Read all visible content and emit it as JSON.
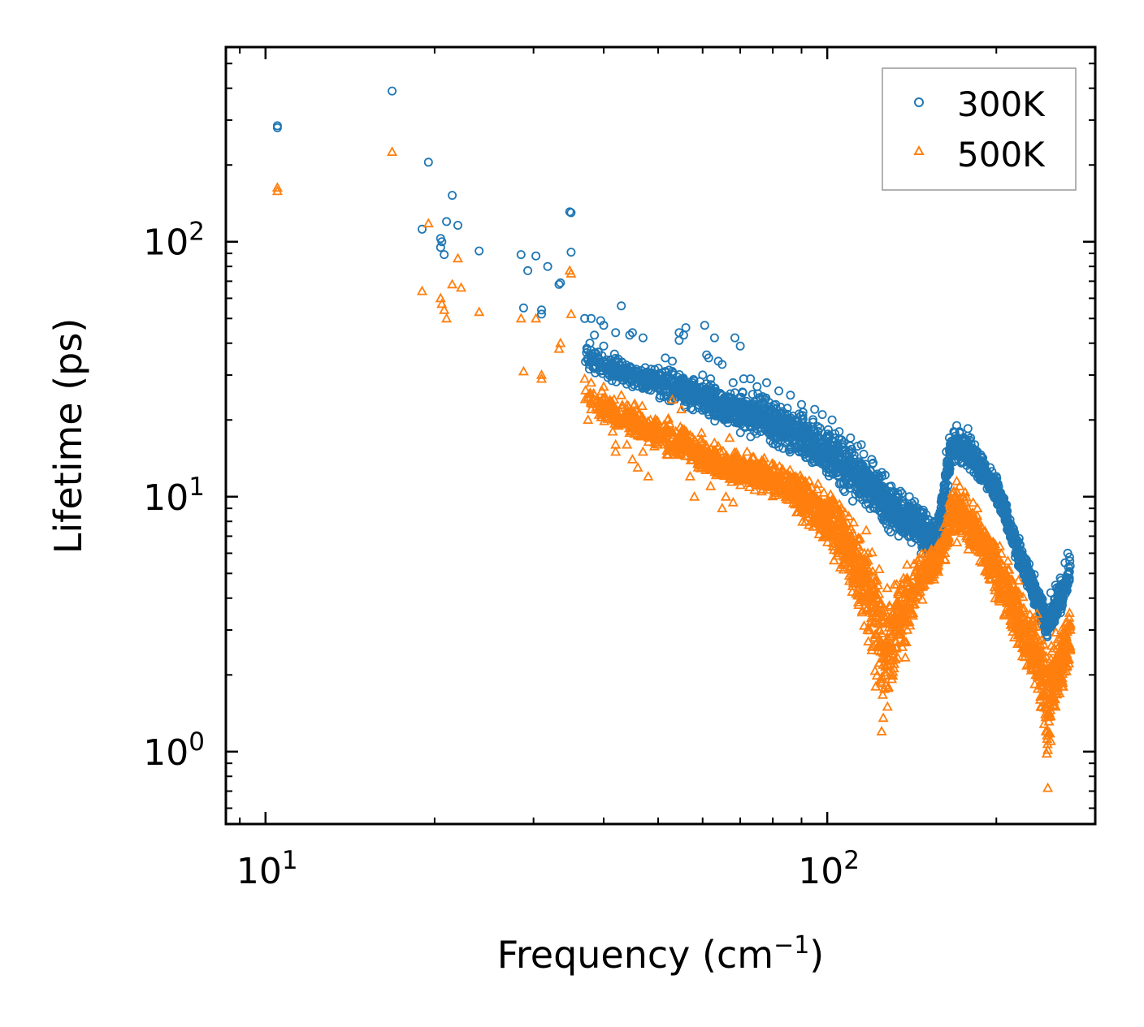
{
  "chart_data": {
    "type": "scatter",
    "title": "",
    "xlabel": "Frequency (cm",
    "xlabel_sup": "−1",
    "xlabel_suffix": ")",
    "ylabel": "Lifetime (ps)",
    "xscale": "log",
    "yscale": "log",
    "xlim": [
      8.5,
      300
    ],
    "ylim": [
      0.52,
      580
    ],
    "grid": false,
    "legend_position": "top-right",
    "x_ticks": [
      {
        "value": 10,
        "base": "10",
        "exp": "1"
      },
      {
        "value": 100,
        "base": "10",
        "exp": "2"
      }
    ],
    "y_ticks": [
      {
        "value": 1,
        "base": "10",
        "exp": "0"
      },
      {
        "value": 10,
        "base": "10",
        "exp": "1"
      },
      {
        "value": 100,
        "base": "10",
        "exp": "2"
      }
    ],
    "series": [
      {
        "name": "300K",
        "marker": "circle",
        "color": "#1f77b4",
        "points": [
          [
            10.5,
            285
          ],
          [
            10.5,
            280
          ],
          [
            16.8,
            390
          ],
          [
            19.5,
            205
          ],
          [
            21.5,
            152
          ],
          [
            21,
            120
          ],
          [
            22,
            116
          ],
          [
            19,
            112
          ],
          [
            20.5,
            103
          ],
          [
            20.6,
            100
          ],
          [
            20.5,
            95
          ],
          [
            20.8,
            89
          ],
          [
            24,
            92
          ],
          [
            28.5,
            89
          ],
          [
            30.3,
            88
          ],
          [
            31.8,
            80
          ],
          [
            29.3,
            77
          ],
          [
            35,
            130
          ],
          [
            34.8,
            131
          ],
          [
            35,
            91
          ],
          [
            33.5,
            69
          ],
          [
            33.3,
            68
          ],
          [
            28.8,
            55
          ],
          [
            31,
            54
          ],
          [
            31,
            52
          ],
          [
            37,
            50
          ],
          [
            38,
            50
          ],
          [
            39.5,
            49
          ],
          [
            40,
            47
          ],
          [
            43,
            56
          ],
          [
            38.5,
            43
          ],
          [
            37.8,
            40
          ],
          [
            40,
            39
          ],
          [
            37.5,
            35
          ],
          [
            42,
            44
          ],
          [
            44.5,
            43
          ],
          [
            45,
            44
          ],
          [
            47,
            42
          ],
          [
            60.5,
            47
          ],
          [
            56,
            46
          ],
          [
            55.5,
            43
          ],
          [
            54.5,
            44
          ],
          [
            63,
            42
          ],
          [
            68.5,
            42
          ],
          [
            70,
            39
          ],
          [
            54.5,
            41
          ],
          [
            61.5,
            35
          ],
          [
            61,
            36
          ],
          [
            64,
            34
          ],
          [
            51.5,
            35
          ],
          [
            53,
            34
          ],
          [
            51.5,
            31
          ],
          [
            53,
            31
          ],
          [
            45,
            27
          ],
          [
            46,
            28
          ],
          [
            47.5,
            27
          ],
          [
            57,
            27
          ],
          [
            60,
            27
          ],
          [
            62,
            29
          ],
          [
            60,
            30
          ],
          [
            65,
            33
          ],
          [
            68,
            28
          ],
          [
            71,
            29
          ],
          [
            73,
            29
          ],
          [
            75,
            27
          ],
          [
            78,
            28
          ],
          [
            82,
            26
          ],
          [
            86,
            25
          ],
          [
            90,
            23
          ],
          [
            95,
            22
          ],
          [
            98,
            21
          ],
          [
            102,
            20
          ],
          [
            105,
            18
          ],
          [
            110,
            17
          ],
          [
            115,
            16
          ],
          [
            120,
            14
          ],
          [
            125,
            12
          ],
          [
            130,
            11
          ],
          [
            135,
            10.5
          ],
          [
            140,
            10
          ],
          [
            145,
            9
          ],
          [
            150,
            8.5
          ],
          [
            155,
            8
          ],
          [
            160,
            10
          ],
          [
            163,
            15
          ],
          [
            165,
            17
          ],
          [
            168,
            18
          ],
          [
            170,
            19
          ],
          [
            172,
            18
          ],
          [
            175,
            17
          ],
          [
            178,
            18.5
          ],
          [
            180,
            17
          ],
          [
            183,
            16
          ],
          [
            185,
            15
          ],
          [
            190,
            13.5
          ],
          [
            195,
            13
          ],
          [
            200,
            12
          ],
          [
            205,
            10
          ],
          [
            210,
            8
          ],
          [
            215,
            7
          ],
          [
            220,
            6.5
          ],
          [
            225,
            5
          ],
          [
            230,
            4.5
          ],
          [
            235,
            4
          ],
          [
            240,
            3.5
          ],
          [
            245,
            3.2
          ],
          [
            250,
            4.2
          ],
          [
            255,
            4.5
          ],
          [
            260,
            4.8
          ],
          [
            265,
            5.5
          ],
          [
            268,
            6
          ],
          [
            270,
            5.8
          ]
        ],
        "band": {
          "x": [
            37,
            45,
            55,
            65,
            75,
            85,
            95,
            105,
            115,
            125,
            135,
            145,
            150,
            155,
            160,
            163,
            166,
            170,
            175,
            180,
            185,
            190,
            195,
            200,
            205,
            210,
            220,
            230,
            240,
            247,
            255,
            263,
            271
          ],
          "lo": [
            30,
            25,
            22,
            18,
            16,
            14,
            12,
            10,
            8.5,
            7.5,
            6.5,
            6.0,
            5.5,
            5.3,
            7,
            9,
            12,
            13,
            13,
            12,
            11,
            11,
            10,
            9,
            8,
            7,
            5,
            4,
            3,
            2.5,
            3,
            3.5,
            4.5
          ],
          "hi": [
            42,
            35,
            32,
            28,
            27,
            24,
            21,
            19,
            16,
            13,
            11,
            10,
            9,
            8,
            11,
            16,
            19,
            19,
            18,
            18,
            16,
            15,
            13,
            13,
            11,
            9,
            7,
            5.5,
            4.5,
            3.8,
            4.5,
            5,
            6
          ],
          "count": 2600
        }
      },
      {
        "name": "500K",
        "marker": "triangle",
        "color": "#ff7f0e",
        "points": [
          [
            10.5,
            163
          ],
          [
            10.5,
            158
          ],
          [
            16.8,
            225
          ],
          [
            19.5,
            118
          ],
          [
            19,
            64
          ],
          [
            20.5,
            60
          ],
          [
            20.6,
            57
          ],
          [
            20.8,
            54
          ],
          [
            21,
            50
          ],
          [
            21.5,
            68
          ],
          [
            22,
            86
          ],
          [
            22.3,
            66
          ],
          [
            24,
            53
          ],
          [
            28.5,
            50
          ],
          [
            28.8,
            31
          ],
          [
            30.3,
            50
          ],
          [
            31,
            30
          ],
          [
            31,
            29
          ],
          [
            33.5,
            40
          ],
          [
            33.3,
            38
          ],
          [
            35,
            75
          ],
          [
            34.8,
            77
          ],
          [
            35,
            52
          ],
          [
            37,
            29
          ],
          [
            38,
            28
          ],
          [
            38.5,
            25
          ],
          [
            38,
            22
          ],
          [
            37.5,
            20
          ],
          [
            40,
            27
          ],
          [
            40.5,
            24
          ],
          [
            41,
            22
          ],
          [
            41.5,
            18
          ],
          [
            42,
            16
          ],
          [
            42,
            15
          ],
          [
            43,
            25
          ],
          [
            44,
            16
          ],
          [
            45,
            14
          ],
          [
            46,
            13
          ],
          [
            47,
            15
          ],
          [
            48,
            12
          ],
          [
            50,
            16
          ],
          [
            51,
            18
          ],
          [
            52,
            20
          ],
          [
            53,
            24
          ],
          [
            55,
            22
          ],
          [
            56,
            16
          ],
          [
            57,
            12
          ],
          [
            58,
            10
          ],
          [
            60,
            13
          ],
          [
            62,
            11
          ],
          [
            64,
            14
          ],
          [
            65,
            9
          ],
          [
            66,
            10
          ],
          [
            67,
            17
          ],
          [
            68,
            9.5
          ],
          [
            70,
            12
          ],
          [
            72,
            15
          ],
          [
            75,
            13
          ],
          [
            78,
            12
          ],
          [
            80,
            11
          ],
          [
            85,
            10
          ],
          [
            90,
            9
          ],
          [
            95,
            8
          ],
          [
            100,
            7
          ],
          [
            105,
            6
          ],
          [
            110,
            5
          ],
          [
            115,
            4
          ],
          [
            118,
            3
          ],
          [
            120,
            2.5
          ],
          [
            122,
            1.8
          ],
          [
            125,
            1.2
          ],
          [
            128,
            1.5
          ],
          [
            130,
            2
          ],
          [
            135,
            3
          ],
          [
            140,
            4
          ],
          [
            145,
            4.5
          ],
          [
            150,
            5
          ],
          [
            155,
            5.5
          ],
          [
            160,
            6.5
          ],
          [
            163,
            8
          ],
          [
            165,
            9.5
          ],
          [
            168,
            10.5
          ],
          [
            170,
            11.5
          ],
          [
            172,
            11
          ],
          [
            175,
            10
          ],
          [
            178,
            9
          ],
          [
            180,
            8.5
          ],
          [
            185,
            9
          ],
          [
            190,
            7
          ],
          [
            195,
            6
          ],
          [
            200,
            5.5
          ],
          [
            205,
            4.5
          ],
          [
            210,
            4
          ],
          [
            215,
            3.5
          ],
          [
            220,
            3
          ],
          [
            225,
            2.5
          ],
          [
            230,
            2.2
          ],
          [
            235,
            2
          ],
          [
            240,
            1.5
          ],
          [
            245,
            1.2
          ],
          [
            247,
            0.72
          ],
          [
            250,
            1.1
          ],
          [
            255,
            1.5
          ],
          [
            260,
            2
          ],
          [
            265,
            2.5
          ],
          [
            268,
            3
          ],
          [
            270,
            3.5
          ]
        ],
        "band": {
          "x": [
            37,
            45,
            55,
            65,
            75,
            85,
            95,
            100,
            105,
            110,
            115,
            120,
            123,
            126,
            130,
            135,
            140,
            145,
            150,
            155,
            160,
            163,
            166,
            170,
            175,
            180,
            185,
            190,
            195,
            200,
            210,
            220,
            230,
            240,
            247,
            250,
            255,
            263,
            271
          ],
          "lo": [
            22,
            16,
            13,
            11,
            10,
            9,
            7,
            6,
            5,
            4,
            3,
            2.2,
            1.6,
            1.2,
            1.5,
            2,
            2.5,
            3.5,
            4,
            4.5,
            5,
            5.5,
            6.5,
            6.5,
            6.5,
            5.5,
            5,
            5,
            4,
            3.5,
            2.8,
            2.2,
            1.8,
            1.3,
            0.75,
            1,
            1.3,
            1.6,
            2
          ],
          "hi": [
            28,
            24,
            20,
            16,
            15,
            14,
            12,
            12,
            11,
            9,
            8,
            7,
            6.5,
            5.5,
            5,
            5.5,
            6,
            6.5,
            6.5,
            6.5,
            8,
            9,
            11,
            12,
            11,
            10,
            9.5,
            9,
            8,
            7.5,
            6,
            5,
            4,
            3.5,
            3,
            3.2,
            3.2,
            3.5,
            4
          ],
          "count": 2600
        }
      }
    ]
  }
}
